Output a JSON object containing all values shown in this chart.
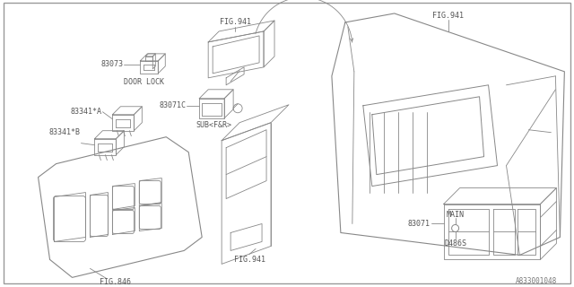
{
  "bg_color": "#ffffff",
  "line_color": "#aaaaaa",
  "text_color": "#555555",
  "dark_line": "#888888",
  "part_id": "A833001048",
  "labels": {
    "door_lock": "DOOR LOCK",
    "sub": "SUB<F&R>",
    "main": "MAIN",
    "d486s": "D486S",
    "fig846": "FIG.846",
    "fig941_top": "FIG.941",
    "fig941_mid": "FIG.941",
    "fig941_bot": "FIG.941",
    "fig941_right": "FIG.941",
    "ref_83073": "83073",
    "ref_83341a": "83341*A",
    "ref_83341b": "83341*B",
    "ref_83071c": "83071C",
    "ref_83071": "83071"
  },
  "font_size": 6.0
}
